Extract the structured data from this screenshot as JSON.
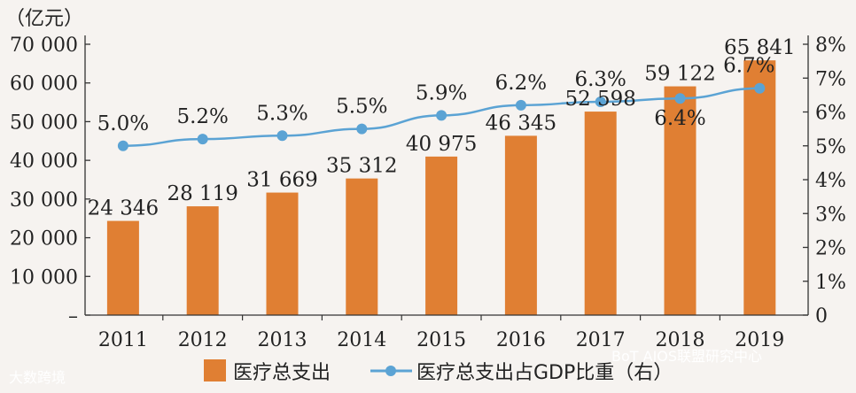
{
  "chart_data": {
    "type": "bar",
    "categories": [
      "2011",
      "2012",
      "2013",
      "2014",
      "2015",
      "2016",
      "2017",
      "2018",
      "2019"
    ],
    "series": [
      {
        "name": "医疗总支出",
        "axis": "left",
        "values": [
          24346,
          28119,
          31669,
          35312,
          40975,
          46345,
          52598,
          59122,
          65841
        ],
        "labels": [
          "24 346",
          "28 119",
          "31 669",
          "35 312",
          "40 975",
          "46 345",
          "52 598",
          "59 122",
          "65 841"
        ],
        "color": "#e07f33"
      },
      {
        "name": "医疗总支出占GDP比重（右）",
        "type": "line",
        "axis": "right",
        "values": [
          5.0,
          5.2,
          5.3,
          5.5,
          5.9,
          6.2,
          6.3,
          6.4,
          6.7
        ],
        "labels": [
          "5.0%",
          "5.2%",
          "5.3%",
          "5.5%",
          "5.9%",
          "6.2%",
          "6.3%",
          "6.4%",
          "6.7%"
        ],
        "color": "#5ba3d4"
      }
    ],
    "y_left": {
      "unit": "（亿元）",
      "ylim": [
        0,
        70000
      ],
      "ticks": [
        0,
        10000,
        20000,
        30000,
        40000,
        50000,
        60000,
        70000
      ],
      "tick_labels": [
        "–",
        "10 000",
        "20 000",
        "30 000",
        "40 000",
        "50 000",
        "60 000",
        "70 000"
      ]
    },
    "y_right": {
      "ylim": [
        0,
        8
      ],
      "ticks": [
        0,
        1,
        2,
        3,
        4,
        5,
        6,
        7,
        8
      ],
      "tick_labels": [
        "0",
        "1%",
        "2%",
        "3%",
        "4%",
        "5%",
        "6%",
        "7%",
        "8%"
      ]
    },
    "legend": {
      "position": "bottom",
      "items": [
        "医疗总支出",
        "医疗总支出占GDP比重（右）"
      ]
    }
  },
  "watermarks": [
    "大数跨境",
    "BoT AIOS联盟研究中心"
  ]
}
